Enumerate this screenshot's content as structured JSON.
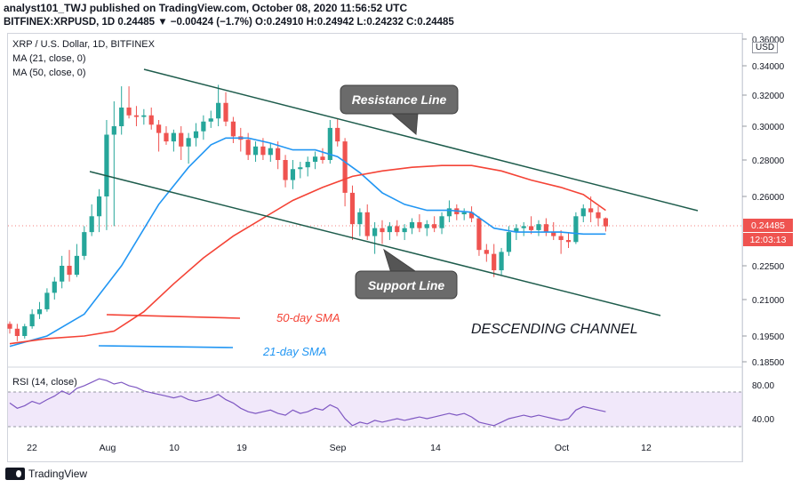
{
  "header": {
    "line1": "analyst101_TWJ published on TradingView.com, October 08, 2020 11:56:52 UTC",
    "line2": "BITFINEX:XRPUSD, 1D 0.24485 ▼ −0.00424 (−1.7%) O:0.24910 H:0.24942 L:0.24232 C:0.24485"
  },
  "legend": {
    "symbol": "XRP / U.S. Dollar, 1D, BITFINEX",
    "ma21": "MA (21, close, 0)",
    "ma50": "MA (50, close, 0)",
    "rsi": "RSI (14, close)"
  },
  "price_axis": {
    "currency": "USD",
    "ticks": [
      "0.36000",
      "0.34000",
      "0.32000",
      "0.30000",
      "0.28000",
      "0.26000",
      "0.22500",
      "0.21000",
      "0.19500",
      "0.18500"
    ],
    "last_price": "0.24485",
    "countdown": "12:03:13"
  },
  "rsi_axis": {
    "ticks": [
      "80.00",
      "40.00"
    ]
  },
  "time_axis": {
    "ticks": [
      "22",
      "Aug",
      "10",
      "19",
      "Sep",
      "14",
      "Oct",
      "12"
    ]
  },
  "annotations": {
    "resistance": "Resistance Line",
    "support": "Support Line",
    "sma50": "50-day SMA",
    "sma21": "21-day SMA",
    "channel": "DESCENDING CHANNEL"
  },
  "footer": {
    "brand": "TradingView"
  },
  "colors": {
    "up": "#26a69a",
    "down": "#ef5350",
    "ma21": "#2196f3",
    "ma50": "#f44336",
    "channel": "#1e5c4c",
    "rsi": "#7e57c2",
    "rsi_band": "#e8dcf5"
  },
  "chart_data": {
    "type": "candlestick",
    "title": "XRP / U.S. Dollar, 1D, BITFINEX",
    "x_start": "2020-07-17",
    "x_end": "2020-10-08",
    "ylim": [
      0.185,
      0.36
    ],
    "candles": [
      {
        "o": 0.2,
        "h": 0.201,
        "l": 0.196,
        "c": 0.198
      },
      {
        "o": 0.198,
        "h": 0.2,
        "l": 0.193,
        "c": 0.195
      },
      {
        "o": 0.195,
        "h": 0.2,
        "l": 0.194,
        "c": 0.199
      },
      {
        "o": 0.199,
        "h": 0.206,
        "l": 0.198,
        "c": 0.204
      },
      {
        "o": 0.204,
        "h": 0.209,
        "l": 0.202,
        "c": 0.206
      },
      {
        "o": 0.206,
        "h": 0.215,
        "l": 0.205,
        "c": 0.213
      },
      {
        "o": 0.213,
        "h": 0.22,
        "l": 0.21,
        "c": 0.218
      },
      {
        "o": 0.218,
        "h": 0.23,
        "l": 0.215,
        "c": 0.225
      },
      {
        "o": 0.225,
        "h": 0.233,
        "l": 0.218,
        "c": 0.221
      },
      {
        "o": 0.221,
        "h": 0.236,
        "l": 0.22,
        "c": 0.23
      },
      {
        "o": 0.23,
        "h": 0.245,
        "l": 0.228,
        "c": 0.242
      },
      {
        "o": 0.242,
        "h": 0.256,
        "l": 0.24,
        "c": 0.25
      },
      {
        "o": 0.25,
        "h": 0.264,
        "l": 0.242,
        "c": 0.26
      },
      {
        "o": 0.26,
        "h": 0.304,
        "l": 0.243,
        "c": 0.295
      },
      {
        "o": 0.295,
        "h": 0.316,
        "l": 0.245,
        "c": 0.3
      },
      {
        "o": 0.3,
        "h": 0.326,
        "l": 0.295,
        "c": 0.312
      },
      {
        "o": 0.312,
        "h": 0.326,
        "l": 0.305,
        "c": 0.307
      },
      {
        "o": 0.307,
        "h": 0.313,
        "l": 0.3,
        "c": 0.306
      },
      {
        "o": 0.306,
        "h": 0.311,
        "l": 0.301,
        "c": 0.307
      },
      {
        "o": 0.307,
        "h": 0.312,
        "l": 0.298,
        "c": 0.301
      },
      {
        "o": 0.301,
        "h": 0.304,
        "l": 0.285,
        "c": 0.296
      },
      {
        "o": 0.296,
        "h": 0.3,
        "l": 0.289,
        "c": 0.291
      },
      {
        "o": 0.291,
        "h": 0.298,
        "l": 0.285,
        "c": 0.296
      },
      {
        "o": 0.296,
        "h": 0.3,
        "l": 0.28,
        "c": 0.288
      },
      {
        "o": 0.288,
        "h": 0.296,
        "l": 0.278,
        "c": 0.293
      },
      {
        "o": 0.293,
        "h": 0.302,
        "l": 0.288,
        "c": 0.297
      },
      {
        "o": 0.297,
        "h": 0.307,
        "l": 0.292,
        "c": 0.303
      },
      {
        "o": 0.303,
        "h": 0.31,
        "l": 0.299,
        "c": 0.305
      },
      {
        "o": 0.305,
        "h": 0.327,
        "l": 0.3,
        "c": 0.315
      },
      {
        "o": 0.315,
        "h": 0.322,
        "l": 0.3,
        "c": 0.303
      },
      {
        "o": 0.303,
        "h": 0.306,
        "l": 0.29,
        "c": 0.294
      },
      {
        "o": 0.294,
        "h": 0.299,
        "l": 0.285,
        "c": 0.292
      },
      {
        "o": 0.292,
        "h": 0.296,
        "l": 0.28,
        "c": 0.283
      },
      {
        "o": 0.283,
        "h": 0.291,
        "l": 0.279,
        "c": 0.288
      },
      {
        "o": 0.288,
        "h": 0.293,
        "l": 0.28,
        "c": 0.283
      },
      {
        "o": 0.283,
        "h": 0.29,
        "l": 0.279,
        "c": 0.287
      },
      {
        "o": 0.287,
        "h": 0.291,
        "l": 0.275,
        "c": 0.28
      },
      {
        "o": 0.28,
        "h": 0.283,
        "l": 0.265,
        "c": 0.269
      },
      {
        "o": 0.269,
        "h": 0.28,
        "l": 0.264,
        "c": 0.275
      },
      {
        "o": 0.275,
        "h": 0.279,
        "l": 0.27,
        "c": 0.276
      },
      {
        "o": 0.276,
        "h": 0.282,
        "l": 0.271,
        "c": 0.279
      },
      {
        "o": 0.279,
        "h": 0.285,
        "l": 0.275,
        "c": 0.282
      },
      {
        "o": 0.282,
        "h": 0.287,
        "l": 0.278,
        "c": 0.28
      },
      {
        "o": 0.28,
        "h": 0.304,
        "l": 0.278,
        "c": 0.299
      },
      {
        "o": 0.299,
        "h": 0.305,
        "l": 0.288,
        "c": 0.291
      },
      {
        "o": 0.291,
        "h": 0.293,
        "l": 0.255,
        "c": 0.262
      },
      {
        "o": 0.262,
        "h": 0.266,
        "l": 0.238,
        "c": 0.246
      },
      {
        "o": 0.246,
        "h": 0.254,
        "l": 0.24,
        "c": 0.252
      },
      {
        "o": 0.252,
        "h": 0.256,
        "l": 0.238,
        "c": 0.24
      },
      {
        "o": 0.24,
        "h": 0.247,
        "l": 0.231,
        "c": 0.244
      },
      {
        "o": 0.244,
        "h": 0.248,
        "l": 0.236,
        "c": 0.242
      },
      {
        "o": 0.242,
        "h": 0.247,
        "l": 0.238,
        "c": 0.245
      },
      {
        "o": 0.245,
        "h": 0.248,
        "l": 0.24,
        "c": 0.242
      },
      {
        "o": 0.242,
        "h": 0.246,
        "l": 0.238,
        "c": 0.244
      },
      {
        "o": 0.244,
        "h": 0.249,
        "l": 0.241,
        "c": 0.247
      },
      {
        "o": 0.247,
        "h": 0.251,
        "l": 0.242,
        "c": 0.244
      },
      {
        "o": 0.244,
        "h": 0.248,
        "l": 0.24,
        "c": 0.246
      },
      {
        "o": 0.246,
        "h": 0.25,
        "l": 0.242,
        "c": 0.244
      },
      {
        "o": 0.244,
        "h": 0.252,
        "l": 0.241,
        "c": 0.25
      },
      {
        "o": 0.25,
        "h": 0.258,
        "l": 0.247,
        "c": 0.254
      },
      {
        "o": 0.254,
        "h": 0.256,
        "l": 0.248,
        "c": 0.251
      },
      {
        "o": 0.251,
        "h": 0.254,
        "l": 0.248,
        "c": 0.252
      },
      {
        "o": 0.252,
        "h": 0.255,
        "l": 0.247,
        "c": 0.249
      },
      {
        "o": 0.249,
        "h": 0.25,
        "l": 0.23,
        "c": 0.233
      },
      {
        "o": 0.233,
        "h": 0.236,
        "l": 0.227,
        "c": 0.231
      },
      {
        "o": 0.231,
        "h": 0.236,
        "l": 0.22,
        "c": 0.223
      },
      {
        "o": 0.223,
        "h": 0.234,
        "l": 0.221,
        "c": 0.232
      },
      {
        "o": 0.232,
        "h": 0.245,
        "l": 0.23,
        "c": 0.242
      },
      {
        "o": 0.242,
        "h": 0.246,
        "l": 0.238,
        "c": 0.244
      },
      {
        "o": 0.244,
        "h": 0.247,
        "l": 0.24,
        "c": 0.245
      },
      {
        "o": 0.245,
        "h": 0.25,
        "l": 0.241,
        "c": 0.243
      },
      {
        "o": 0.243,
        "h": 0.248,
        "l": 0.24,
        "c": 0.246
      },
      {
        "o": 0.246,
        "h": 0.249,
        "l": 0.24,
        "c": 0.242
      },
      {
        "o": 0.242,
        "h": 0.247,
        "l": 0.238,
        "c": 0.24
      },
      {
        "o": 0.24,
        "h": 0.243,
        "l": 0.231,
        "c": 0.238
      },
      {
        "o": 0.238,
        "h": 0.242,
        "l": 0.234,
        "c": 0.237
      },
      {
        "o": 0.237,
        "h": 0.252,
        "l": 0.236,
        "c": 0.25
      },
      {
        "o": 0.25,
        "h": 0.256,
        "l": 0.247,
        "c": 0.254
      },
      {
        "o": 0.254,
        "h": 0.26,
        "l": 0.247,
        "c": 0.252
      },
      {
        "o": 0.252,
        "h": 0.255,
        "l": 0.245,
        "c": 0.249
      },
      {
        "o": 0.249,
        "h": 0.2494,
        "l": 0.2423,
        "c": 0.2449
      }
    ],
    "ma21": [
      [
        0,
        0.191
      ],
      [
        5,
        0.195
      ],
      [
        10,
        0.204
      ],
      [
        15,
        0.225
      ],
      [
        20,
        0.256
      ],
      [
        24,
        0.276
      ],
      [
        27,
        0.289
      ],
      [
        29,
        0.293
      ],
      [
        32,
        0.293
      ],
      [
        35,
        0.29
      ],
      [
        38,
        0.286
      ],
      [
        41,
        0.286
      ],
      [
        44,
        0.282
      ],
      [
        47,
        0.273
      ],
      [
        50,
        0.262
      ],
      [
        53,
        0.256
      ],
      [
        56,
        0.253
      ],
      [
        59,
        0.253
      ],
      [
        62,
        0.252
      ],
      [
        65,
        0.244
      ],
      [
        68,
        0.242
      ],
      [
        71,
        0.242
      ],
      [
        74,
        0.242
      ],
      [
        77,
        0.241
      ],
      [
        80,
        0.241
      ]
    ],
    "ma50": [
      [
        0,
        0.192
      ],
      [
        5,
        0.194
      ],
      [
        10,
        0.195
      ],
      [
        14,
        0.197
      ],
      [
        18,
        0.205
      ],
      [
        22,
        0.217
      ],
      [
        26,
        0.229
      ],
      [
        30,
        0.24
      ],
      [
        34,
        0.249
      ],
      [
        38,
        0.258
      ],
      [
        42,
        0.265
      ],
      [
        46,
        0.271
      ],
      [
        50,
        0.274
      ],
      [
        54,
        0.276
      ],
      [
        58,
        0.277
      ],
      [
        62,
        0.277
      ],
      [
        66,
        0.274
      ],
      [
        70,
        0.269
      ],
      [
        74,
        0.265
      ],
      [
        77,
        0.261
      ],
      [
        80,
        0.253
      ]
    ],
    "rsi": [
      58,
      52,
      55,
      60,
      57,
      62,
      66,
      72,
      68,
      75,
      78,
      82,
      86,
      84,
      80,
      82,
      78,
      76,
      72,
      70,
      68,
      66,
      64,
      66,
      62,
      60,
      62,
      64,
      68,
      62,
      58,
      52,
      48,
      46,
      48,
      50,
      46,
      44,
      50,
      46,
      48,
      52,
      50,
      56,
      52,
      40,
      32,
      36,
      34,
      38,
      36,
      38,
      40,
      38,
      40,
      42,
      40,
      42,
      44,
      46,
      44,
      46,
      42,
      36,
      34,
      32,
      36,
      40,
      42,
      44,
      42,
      44,
      42,
      40,
      38,
      40,
      50,
      54,
      52,
      50,
      48
    ]
  }
}
